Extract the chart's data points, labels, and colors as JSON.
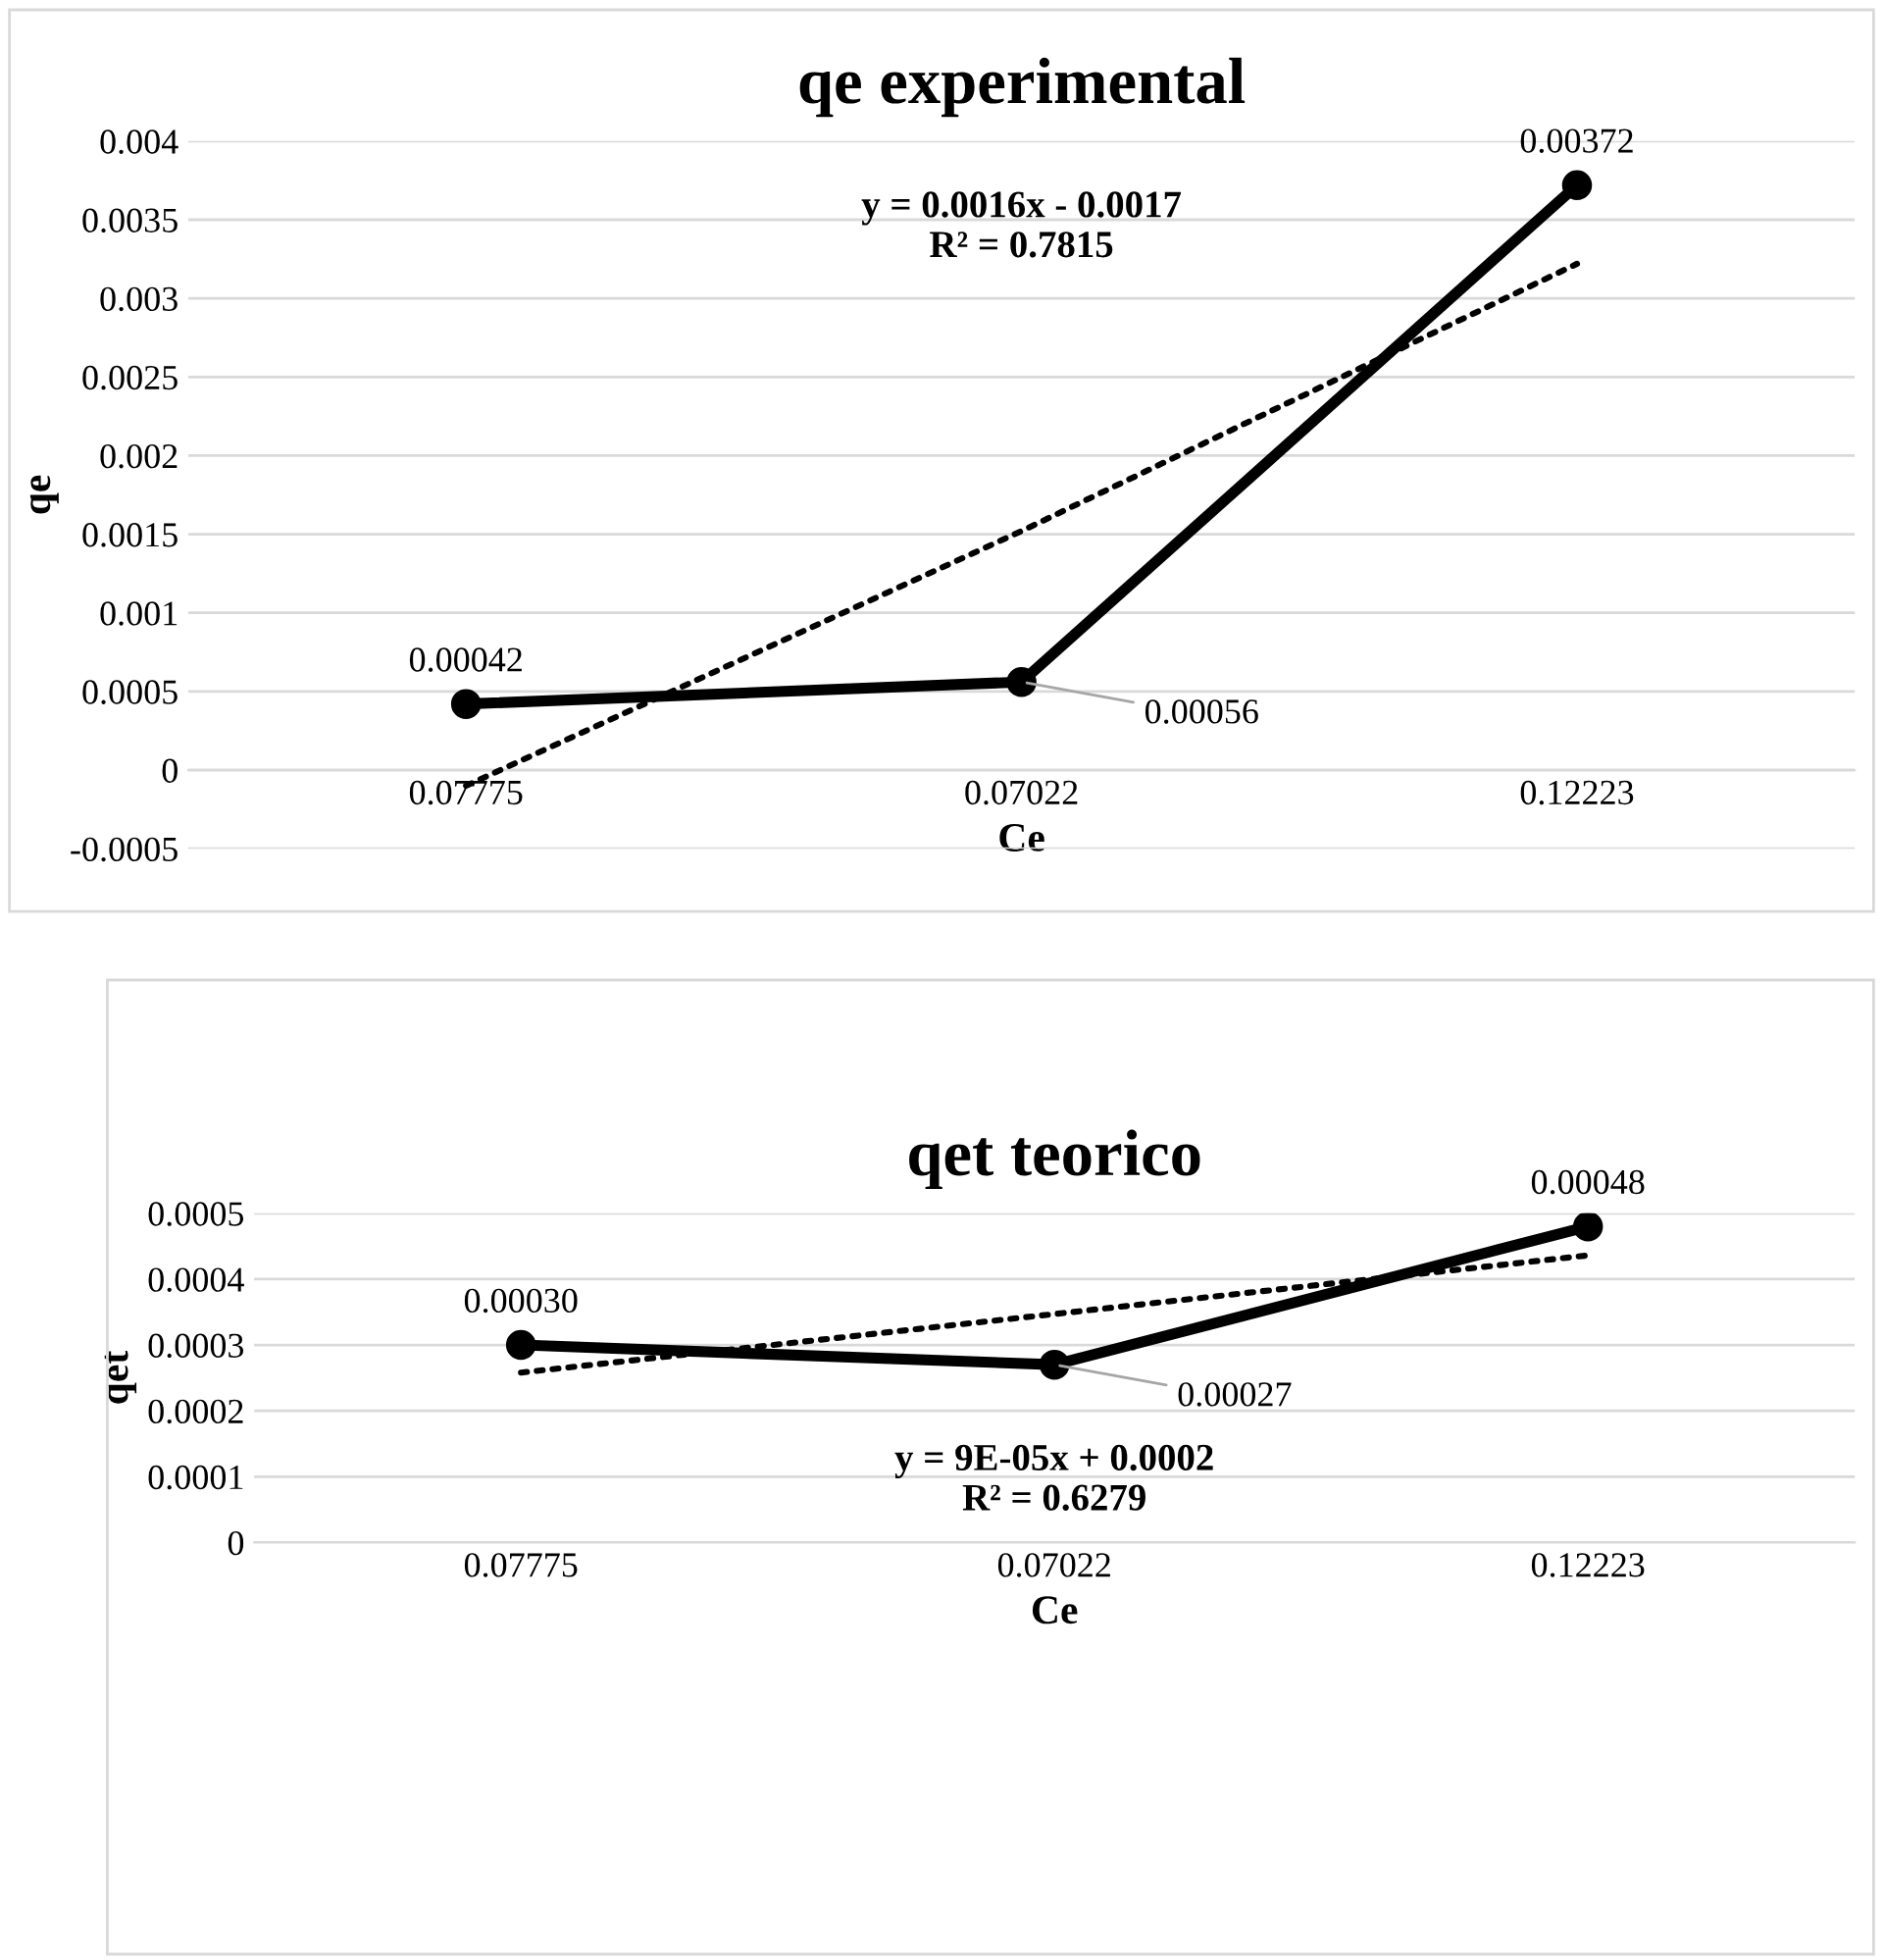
{
  "chart_data": [
    {
      "type": "line",
      "title": "qe experimental",
      "xlabel": "Ce",
      "ylabel": "qe",
      "categories": [
        "0.07775",
        "0.07022",
        "0.12223"
      ],
      "series": [
        {
          "color": "#000000",
          "values": [
            0.00042,
            0.00056,
            0.00372
          ],
          "value_labels": [
            "0.00042",
            "0.00056",
            "0.00372"
          ],
          "marker": "circle",
          "line_style": "solid"
        },
        {
          "color": "#000000",
          "values": [
            -0.0001,
            0.00152,
            0.00322
          ],
          "marker": "none",
          "line_style": "dotted"
        }
      ],
      "ylim": [
        -0.0005,
        0.004
      ],
      "yticks": [
        -0.0005,
        0,
        0.0005,
        0.001,
        0.0015,
        0.002,
        0.0025,
        0.003,
        0.0035,
        0.004
      ],
      "grid": "y",
      "annotations": [
        "y = 0.0016x - 0.0017\nR² = 0.7815"
      ]
    },
    {
      "type": "line",
      "title": "qet teorico",
      "xlabel": "Ce",
      "ylabel": "qet",
      "categories": [
        "0.07775",
        "0.07022",
        "0.12223"
      ],
      "series": [
        {
          "color": "#000000",
          "values": [
            0.0003,
            0.00027,
            0.00048
          ],
          "value_labels": [
            "0.00030",
            "0.00027",
            "0.00048"
          ],
          "marker": "circle",
          "line_style": "solid"
        },
        {
          "color": "#000000",
          "values": [
            0.000258,
            0.000347,
            0.000436
          ],
          "marker": "none",
          "line_style": "dotted"
        }
      ],
      "ylim": [
        0,
        0.0005
      ],
      "yticks": [
        0,
        0.0001,
        0.0002,
        0.0003,
        0.0004,
        0.0005
      ],
      "grid": "y",
      "annotations": [
        "y = 9E-05x + 0.0002\nR² = 0.6279"
      ]
    }
  ]
}
